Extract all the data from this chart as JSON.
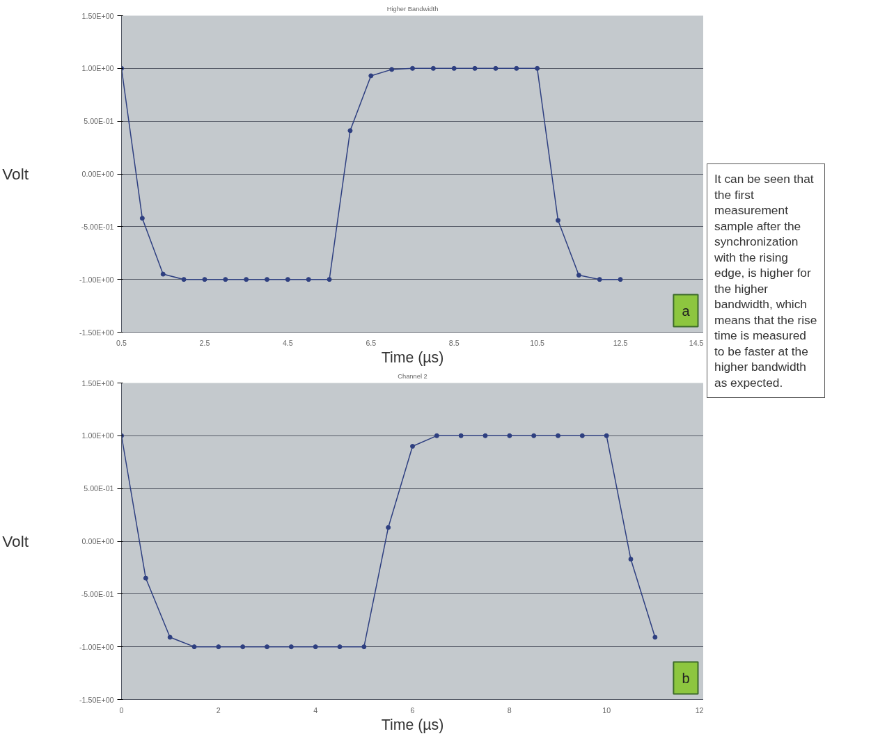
{
  "chart_data": [
    {
      "type": "line",
      "title": "Higher Bandwidth",
      "xlabel": "Time (µs)",
      "ylabel": "Volt",
      "x": [
        0.5,
        1.0,
        1.5,
        2.0,
        2.5,
        3.0,
        3.5,
        4.0,
        4.5,
        5.0,
        5.5,
        6.0,
        6.5,
        7.0,
        7.5,
        8.0,
        8.5,
        9.0,
        9.5,
        10.0,
        10.5,
        11.0,
        11.5,
        12.0,
        12.5
      ],
      "series": [
        {
          "color": "#2e3f80",
          "values": [
            1.0,
            -0.42,
            -0.95,
            -1.0,
            -1.0,
            -1.0,
            -1.0,
            -1.0,
            -1.0,
            -1.0,
            -1.0,
            0.41,
            0.93,
            0.99,
            1.0,
            1.0,
            1.0,
            1.0,
            1.0,
            1.0,
            1.0,
            -0.44,
            -0.96,
            -1.0,
            -1.0
          ]
        }
      ],
      "xlim": [
        0.5,
        14.5
      ],
      "xticks": [
        0.5,
        2.5,
        4.5,
        6.5,
        8.5,
        10.5,
        12.5,
        14.5
      ],
      "ylim": [
        -1.5,
        1.5
      ],
      "yticks": [
        {
          "value": 1.5,
          "label": "1.50E+00"
        },
        {
          "value": 1.0,
          "label": "1.00E+00"
        },
        {
          "value": 0.5,
          "label": "5.00E-01"
        },
        {
          "value": 0,
          "label": "0.00E+00"
        },
        {
          "value": -0.5,
          "label": "-5.00E-01"
        },
        {
          "value": -1.0,
          "label": "-1.00E+00"
        },
        {
          "value": -1.5,
          "label": "-1.50E+00"
        }
      ],
      "grid": "y",
      "marker": "circle",
      "line_style": "solid",
      "annotations": [
        "a",
        "It can be seen that the first measurement sample after the synchronization with the rising edge, is higher for the higher bandwidth, which means that the rise time is measured to be faster at the higher bandwidth  as expected."
      ]
    },
    {
      "type": "line",
      "title": "Channel 2",
      "xlabel": "Time (µs)",
      "ylabel": "Volt",
      "x": [
        0,
        0.5,
        1.0,
        1.5,
        2.0,
        2.5,
        3.0,
        3.5,
        4.0,
        4.5,
        5.0,
        5.5,
        6.0,
        6.5,
        7.0,
        7.5,
        8.0,
        8.5,
        9.0,
        9.5,
        10.0,
        10.5,
        11.0
      ],
      "series": [
        {
          "color": "#2e3f80",
          "values": [
            1.0,
            -0.35,
            -0.91,
            -1.0,
            -1.0,
            -1.0,
            -1.0,
            -1.0,
            -1.0,
            -1.0,
            -1.0,
            0.13,
            0.9,
            1.0,
            1.0,
            1.0,
            1.0,
            1.0,
            1.0,
            1.0,
            1.0,
            -0.17,
            -0.91
          ]
        }
      ],
      "xlim": [
        0,
        12
      ],
      "xticks": [
        0,
        2,
        4,
        6,
        8,
        10,
        12
      ],
      "ylim": [
        -1.5,
        1.5
      ],
      "yticks": [
        {
          "value": 1.5,
          "label": "1.50E+00"
        },
        {
          "value": 1.0,
          "label": "1.00E+00"
        },
        {
          "value": 0.5,
          "label": "5.00E-01"
        },
        {
          "value": 0,
          "label": "0.00E+00"
        },
        {
          "value": -0.5,
          "label": "-5.00E-01"
        },
        {
          "value": -1.0,
          "label": "-1.00E+00"
        },
        {
          "value": -1.5,
          "label": "-1.50E+00"
        }
      ],
      "grid": "y",
      "marker": "circle",
      "line_style": "solid",
      "annotations": [
        "b"
      ]
    }
  ]
}
